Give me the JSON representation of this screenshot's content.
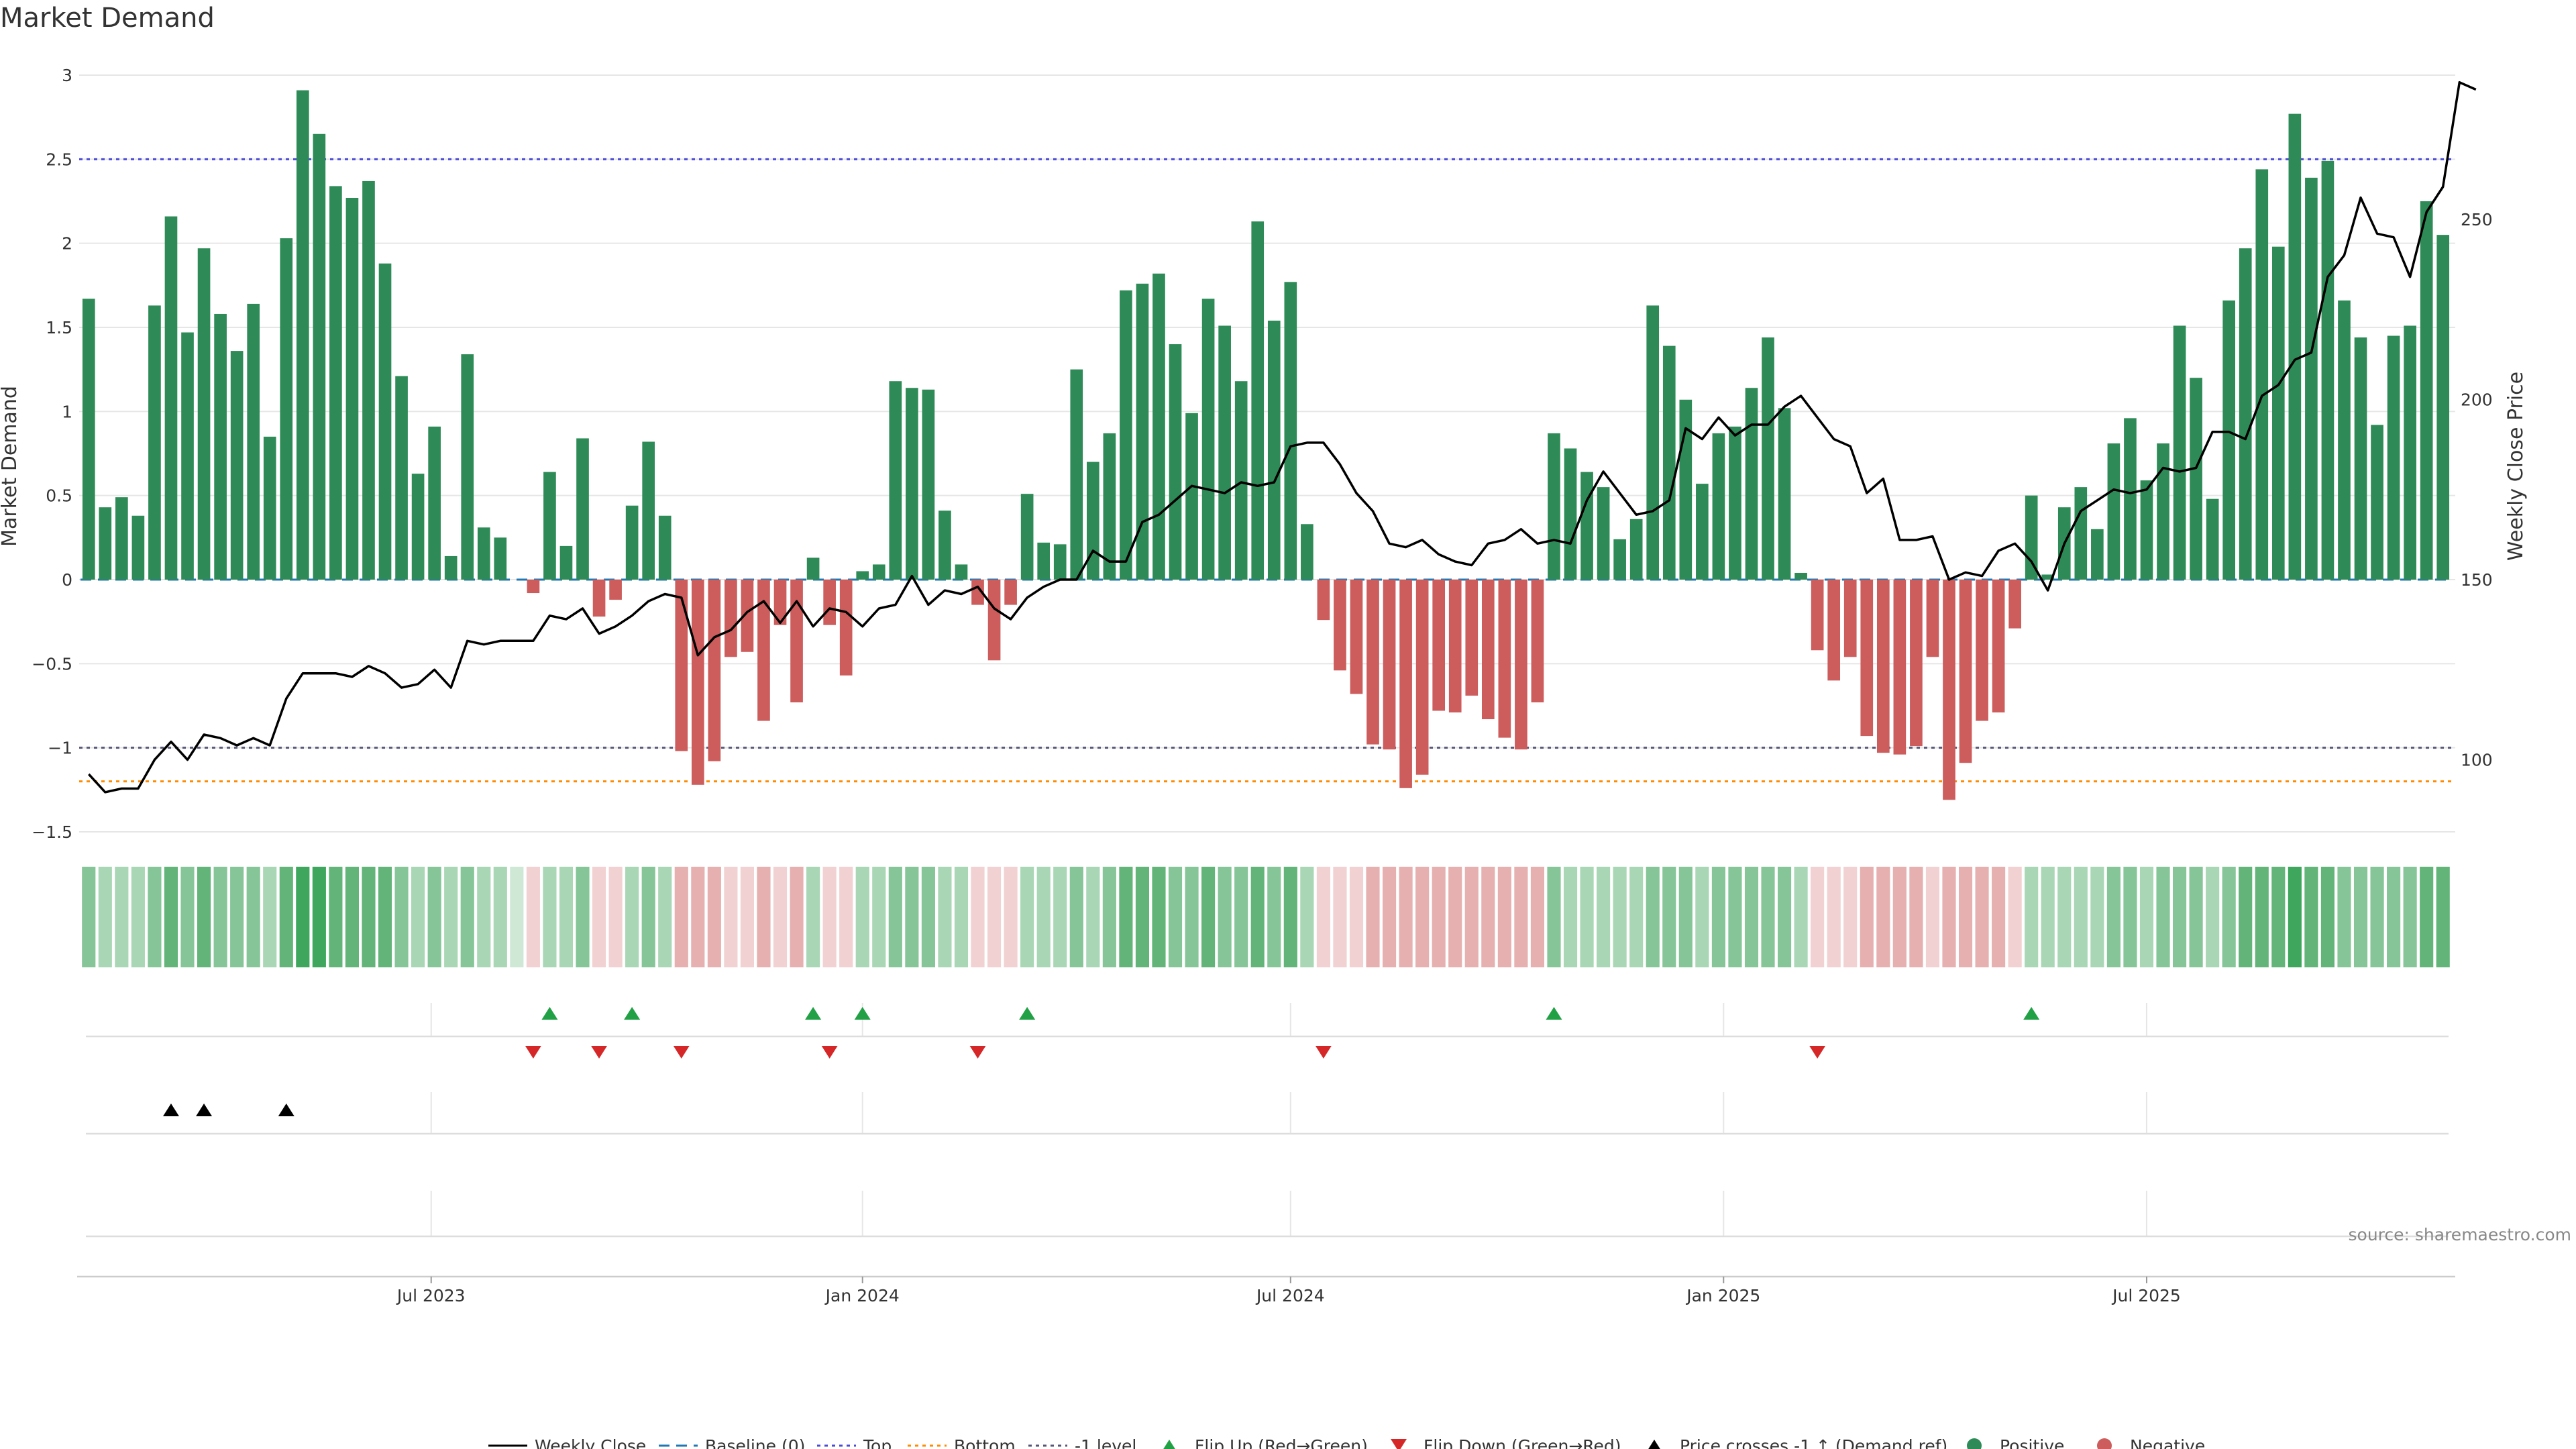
{
  "chart_data": {
    "type": "bar",
    "title": "Market Demand",
    "ylabel": "Market Demand",
    "y2label": "Weekly Close Price",
    "ylim": [
      -1.5,
      3
    ],
    "y2lim": [
      80,
      290
    ],
    "yticks": [
      3,
      2.5,
      2,
      1.5,
      1,
      0.5,
      0,
      -0.5,
      -1,
      -1.5
    ],
    "ytick_labels": [
      "3",
      "2.5",
      "2",
      "1.5",
      "1",
      "0.5",
      "0",
      "−0.5",
      "−1",
      "−1.5"
    ],
    "y2ticks": [
      250,
      200,
      150,
      100
    ],
    "x_ticks": [
      {
        "label": "Jul 2023",
        "week": 20.8
      },
      {
        "label": "Jan 2024",
        "week": 47
      },
      {
        "label": "Jul 2024",
        "week": 73
      },
      {
        "label": "Jan 2025",
        "week": 99.3
      },
      {
        "label": "Jul 2025",
        "week": 125
      }
    ],
    "reference_lines": {
      "top": 2.5,
      "bottom": -1.2,
      "minus_one": -1,
      "baseline": 0
    },
    "series": [
      {
        "name": "Market Demand",
        "values": [
          1.67,
          0.43,
          0.49,
          0.38,
          1.63,
          2.16,
          1.47,
          1.97,
          1.58,
          1.36,
          1.64,
          0.85,
          2.03,
          2.91,
          2.65,
          2.34,
          2.27,
          2.37,
          1.88,
          1.21,
          0.63,
          0.91,
          0.14,
          1.34,
          0.31,
          0.25,
          0.0,
          -0.08,
          0.64,
          0.2,
          0.84,
          -0.22,
          -0.12,
          0.44,
          0.82,
          0.38,
          -1.02,
          -1.22,
          -1.08,
          -0.46,
          -0.43,
          -0.84,
          -0.27,
          -0.73,
          0.13,
          -0.27,
          -0.57,
          0.05,
          0.09,
          1.18,
          1.14,
          1.13,
          0.41,
          0.09,
          -0.15,
          -0.48,
          -0.15,
          0.51,
          0.22,
          0.21,
          1.25,
          0.7,
          0.87,
          1.72,
          1.76,
          1.82,
          1.4,
          0.99,
          1.67,
          1.51,
          1.18,
          2.13,
          1.54,
          1.77,
          0.33,
          -0.24,
          -0.54,
          -0.68,
          -0.98,
          -1.01,
          -1.24,
          -1.16,
          -0.78,
          -0.79,
          -0.69,
          -0.83,
          -0.94,
          -1.01,
          -0.73,
          0.87,
          0.78,
          0.64,
          0.55,
          0.24,
          0.36,
          1.63,
          1.39,
          1.07,
          0.57,
          0.87,
          0.91,
          1.14,
          1.44,
          1.02,
          0.04,
          -0.42,
          -0.6,
          -0.46,
          -0.93,
          -1.03,
          -1.04,
          -0.99,
          -0.46,
          -1.31,
          -1.09,
          -0.84,
          -0.79,
          -0.29,
          0.5,
          0.03,
          0.43,
          0.55,
          0.3,
          0.81,
          0.96,
          0.59,
          0.81,
          1.51,
          1.2,
          0.48,
          1.66,
          1.97,
          2.44,
          1.98,
          2.77,
          2.39,
          2.49,
          1.66,
          1.44,
          0.92,
          1.45,
          1.51,
          2.25,
          2.05
        ]
      },
      {
        "name": "Weekly Close",
        "axis": "right",
        "values": [
          96,
          91,
          92,
          92,
          100,
          105,
          100,
          107,
          106,
          104,
          106,
          104,
          117,
          124,
          124,
          124,
          123,
          126,
          124,
          120,
          121,
          125,
          120,
          133,
          132,
          133,
          133,
          133,
          140,
          139,
          142,
          135,
          137,
          140,
          144,
          146,
          145,
          129,
          134,
          136,
          141,
          144,
          138,
          144,
          137,
          142,
          141,
          137,
          142,
          143,
          151,
          143,
          147,
          146,
          148,
          142,
          139,
          145,
          148,
          150,
          150,
          158,
          155,
          155,
          166,
          168,
          172,
          176,
          175,
          174,
          177,
          176,
          177,
          187,
          188,
          188,
          182,
          174,
          169,
          160,
          159,
          161,
          157,
          155,
          154,
          160,
          161,
          164,
          160,
          161,
          160,
          172,
          180,
          174,
          168,
          169,
          172,
          192,
          189,
          195,
          190,
          193,
          193,
          198,
          201,
          195,
          189,
          187,
          174,
          178,
          161,
          161,
          162,
          150,
          152,
          151,
          158,
          160,
          155,
          147,
          160,
          169,
          172,
          175,
          174,
          175,
          181,
          180,
          181,
          191,
          191,
          189,
          201,
          204,
          211,
          213,
          234,
          240,
          256,
          246,
          245,
          234,
          252,
          259,
          288,
          286
        ]
      }
    ],
    "heat_strip_levels": [
      2,
      1,
      1,
      1,
      2,
      3,
      2,
      3,
      2,
      2,
      2,
      1,
      3,
      4,
      4,
      3,
      3,
      3,
      3,
      2,
      1,
      2,
      1,
      2,
      1,
      1,
      0,
      -1,
      1,
      1,
      2,
      -1,
      -1,
      1,
      2,
      1,
      -2,
      -2,
      -2,
      -1,
      -1,
      -2,
      -1,
      -2,
      1,
      -1,
      -1,
      1,
      1,
      2,
      2,
      2,
      1,
      1,
      -1,
      -1,
      -1,
      1,
      1,
      1,
      2,
      1,
      2,
      3,
      3,
      3,
      2,
      2,
      3,
      2,
      2,
      3,
      2,
      3,
      1,
      -1,
      -1,
      -1,
      -2,
      -2,
      -2,
      -2,
      -2,
      -2,
      -2,
      -2,
      -2,
      -2,
      -2,
      2,
      1,
      1,
      1,
      1,
      1,
      2,
      2,
      2,
      1,
      2,
      2,
      2,
      2,
      2,
      1,
      -1,
      -1,
      -1,
      -2,
      -2,
      -2,
      -2,
      -1,
      -2,
      -2,
      -2,
      -2,
      -1,
      1,
      1,
      1,
      1,
      1,
      2,
      2,
      1,
      2,
      2,
      2,
      1,
      2,
      3,
      3,
      3,
      4,
      3,
      3,
      2,
      2,
      2,
      2,
      2,
      3,
      3
    ],
    "events": {
      "flip_up_weeks": [
        28,
        33,
        44,
        47,
        57,
        89,
        118
      ],
      "flip_down_weeks": [
        27,
        31,
        36,
        45,
        54,
        75,
        105
      ],
      "price_cross_weeks": [
        5,
        7,
        12
      ]
    },
    "legend": [
      "Weekly Close",
      "Baseline (0)",
      "Top",
      "Bottom",
      "-1 level",
      "Flip Up (Red→Green)",
      "Flip Down (Green→Red)",
      "Price crosses -1 ↑ (Demand ref)",
      "Positive",
      "Negative"
    ],
    "source": "source: sharemaestro.com"
  },
  "colors": {
    "positive": "#2e8b57",
    "negative": "#cd5c5c",
    "price_line": "#000000",
    "baseline": "#1f77b4",
    "top": "#4b4bd6",
    "bottom": "#ff8c00",
    "minus_one": "#555577",
    "flip_up": "#22a046",
    "flip_down": "#d62728",
    "cross": "#000000",
    "grid": "#e6e6e6"
  }
}
